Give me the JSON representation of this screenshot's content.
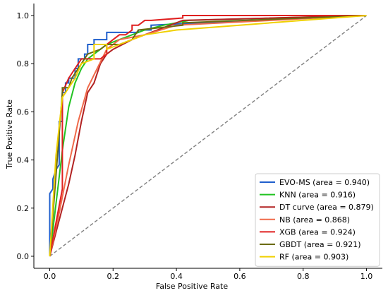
{
  "chart_data": {
    "type": "line",
    "xlabel": "False Positive Rate",
    "ylabel": "True Positive Rate",
    "xlim": [
      -0.05,
      1.05
    ],
    "ylim": [
      -0.05,
      1.05
    ],
    "xticks": [
      "0.0",
      "0.2",
      "0.4",
      "0.6",
      "0.8",
      "1.0"
    ],
    "yticks": [
      "0.0",
      "0.2",
      "0.4",
      "0.6",
      "0.8",
      "1.0"
    ],
    "xtick_values": [
      0,
      0.2,
      0.4,
      0.6,
      0.8,
      1.0
    ],
    "ytick_values": [
      0,
      0.2,
      0.4,
      0.6,
      0.8,
      1.0
    ],
    "legend_position": "lower-right",
    "grid": false,
    "reference_line": {
      "x": [
        0,
        1
      ],
      "y": [
        0,
        1
      ],
      "color": "#808080",
      "style": "dashed"
    },
    "series": [
      {
        "name": "EVO-MS (area = 0.940)",
        "color": "#1f5fcc",
        "x": [
          0,
          0,
          0.01,
          0.01,
          0.02,
          0.03,
          0.03,
          0.04,
          0.04,
          0.05,
          0.05,
          0.06,
          0.06,
          0.08,
          0.08,
          0.09,
          0.09,
          0.11,
          0.11,
          0.12,
          0.12,
          0.14,
          0.14,
          0.18,
          0.18,
          0.28,
          0.28,
          0.32,
          0.32,
          1.0
        ],
        "y": [
          0,
          0.26,
          0.28,
          0.32,
          0.36,
          0.38,
          0.56,
          0.56,
          0.68,
          0.68,
          0.72,
          0.72,
          0.74,
          0.74,
          0.78,
          0.78,
          0.82,
          0.82,
          0.84,
          0.84,
          0.88,
          0.88,
          0.9,
          0.9,
          0.93,
          0.93,
          0.94,
          0.94,
          0.96,
          1.0
        ]
      },
      {
        "name": "KNN (area = 0.916)",
        "color": "#22c322",
        "x": [
          0,
          0.04,
          0.06,
          0.08,
          0.1,
          0.12,
          0.16,
          0.18,
          0.22,
          0.26,
          0.3,
          0.36,
          0.4,
          0.44,
          1.0
        ],
        "y": [
          0,
          0.44,
          0.62,
          0.72,
          0.78,
          0.82,
          0.86,
          0.88,
          0.9,
          0.92,
          0.94,
          0.96,
          0.97,
          0.98,
          1.0
        ]
      },
      {
        "name": "DT curve (area = 0.879)",
        "color": "#b22222",
        "x": [
          0,
          0.02,
          0.04,
          0.06,
          0.08,
          0.1,
          0.12,
          0.14,
          0.16,
          0.18,
          0.2,
          0.26,
          0.42,
          1.0
        ],
        "y": [
          0,
          0.1,
          0.2,
          0.3,
          0.42,
          0.56,
          0.68,
          0.72,
          0.8,
          0.84,
          0.86,
          0.9,
          0.98,
          1.0
        ]
      },
      {
        "name": "NB (area = 0.868)",
        "color": "#f06a4a",
        "x": [
          0,
          0.03,
          0.06,
          0.09,
          0.12,
          0.15,
          0.18,
          0.22,
          0.3,
          0.4,
          1.0
        ],
        "y": [
          0,
          0.18,
          0.38,
          0.56,
          0.7,
          0.78,
          0.86,
          0.9,
          0.92,
          0.96,
          1.0
        ]
      },
      {
        "name": "XGB (area = 0.924)",
        "color": "#e02020",
        "x": [
          0,
          0.02,
          0.04,
          0.04,
          0.06,
          0.08,
          0.1,
          0.12,
          0.14,
          0.16,
          0.18,
          0.18,
          0.2,
          0.22,
          0.24,
          0.26,
          0.26,
          0.28,
          0.3,
          0.32,
          0.42,
          0.42,
          1.0
        ],
        "y": [
          0,
          0.14,
          0.28,
          0.68,
          0.74,
          0.78,
          0.82,
          0.82,
          0.82,
          0.82,
          0.84,
          0.88,
          0.9,
          0.92,
          0.92,
          0.94,
          0.96,
          0.96,
          0.98,
          0.98,
          0.99,
          1.0,
          1.0
        ]
      },
      {
        "name": "GBDT (area = 0.921)",
        "color": "#6b6b10",
        "x": [
          0,
          0.04,
          0.04,
          0.06,
          0.07,
          0.08,
          0.1,
          0.12,
          0.16,
          0.18,
          0.22,
          0.24,
          0.26,
          0.28,
          0.42,
          0.42,
          1.0
        ],
        "y": [
          0,
          0.68,
          0.7,
          0.7,
          0.74,
          0.76,
          0.8,
          0.84,
          0.86,
          0.88,
          0.88,
          0.89,
          0.9,
          0.94,
          0.96,
          0.97,
          1.0
        ]
      },
      {
        "name": "RF (area = 0.903)",
        "color": "#f0d000",
        "x": [
          0,
          0.02,
          0.04,
          0.06,
          0.08,
          0.1,
          0.14,
          0.14,
          0.18,
          0.18,
          0.22,
          0.26,
          0.3,
          0.4,
          1.0
        ],
        "y": [
          0,
          0.42,
          0.66,
          0.7,
          0.74,
          0.8,
          0.82,
          0.88,
          0.88,
          0.86,
          0.88,
          0.9,
          0.92,
          0.94,
          1.0
        ]
      }
    ]
  }
}
